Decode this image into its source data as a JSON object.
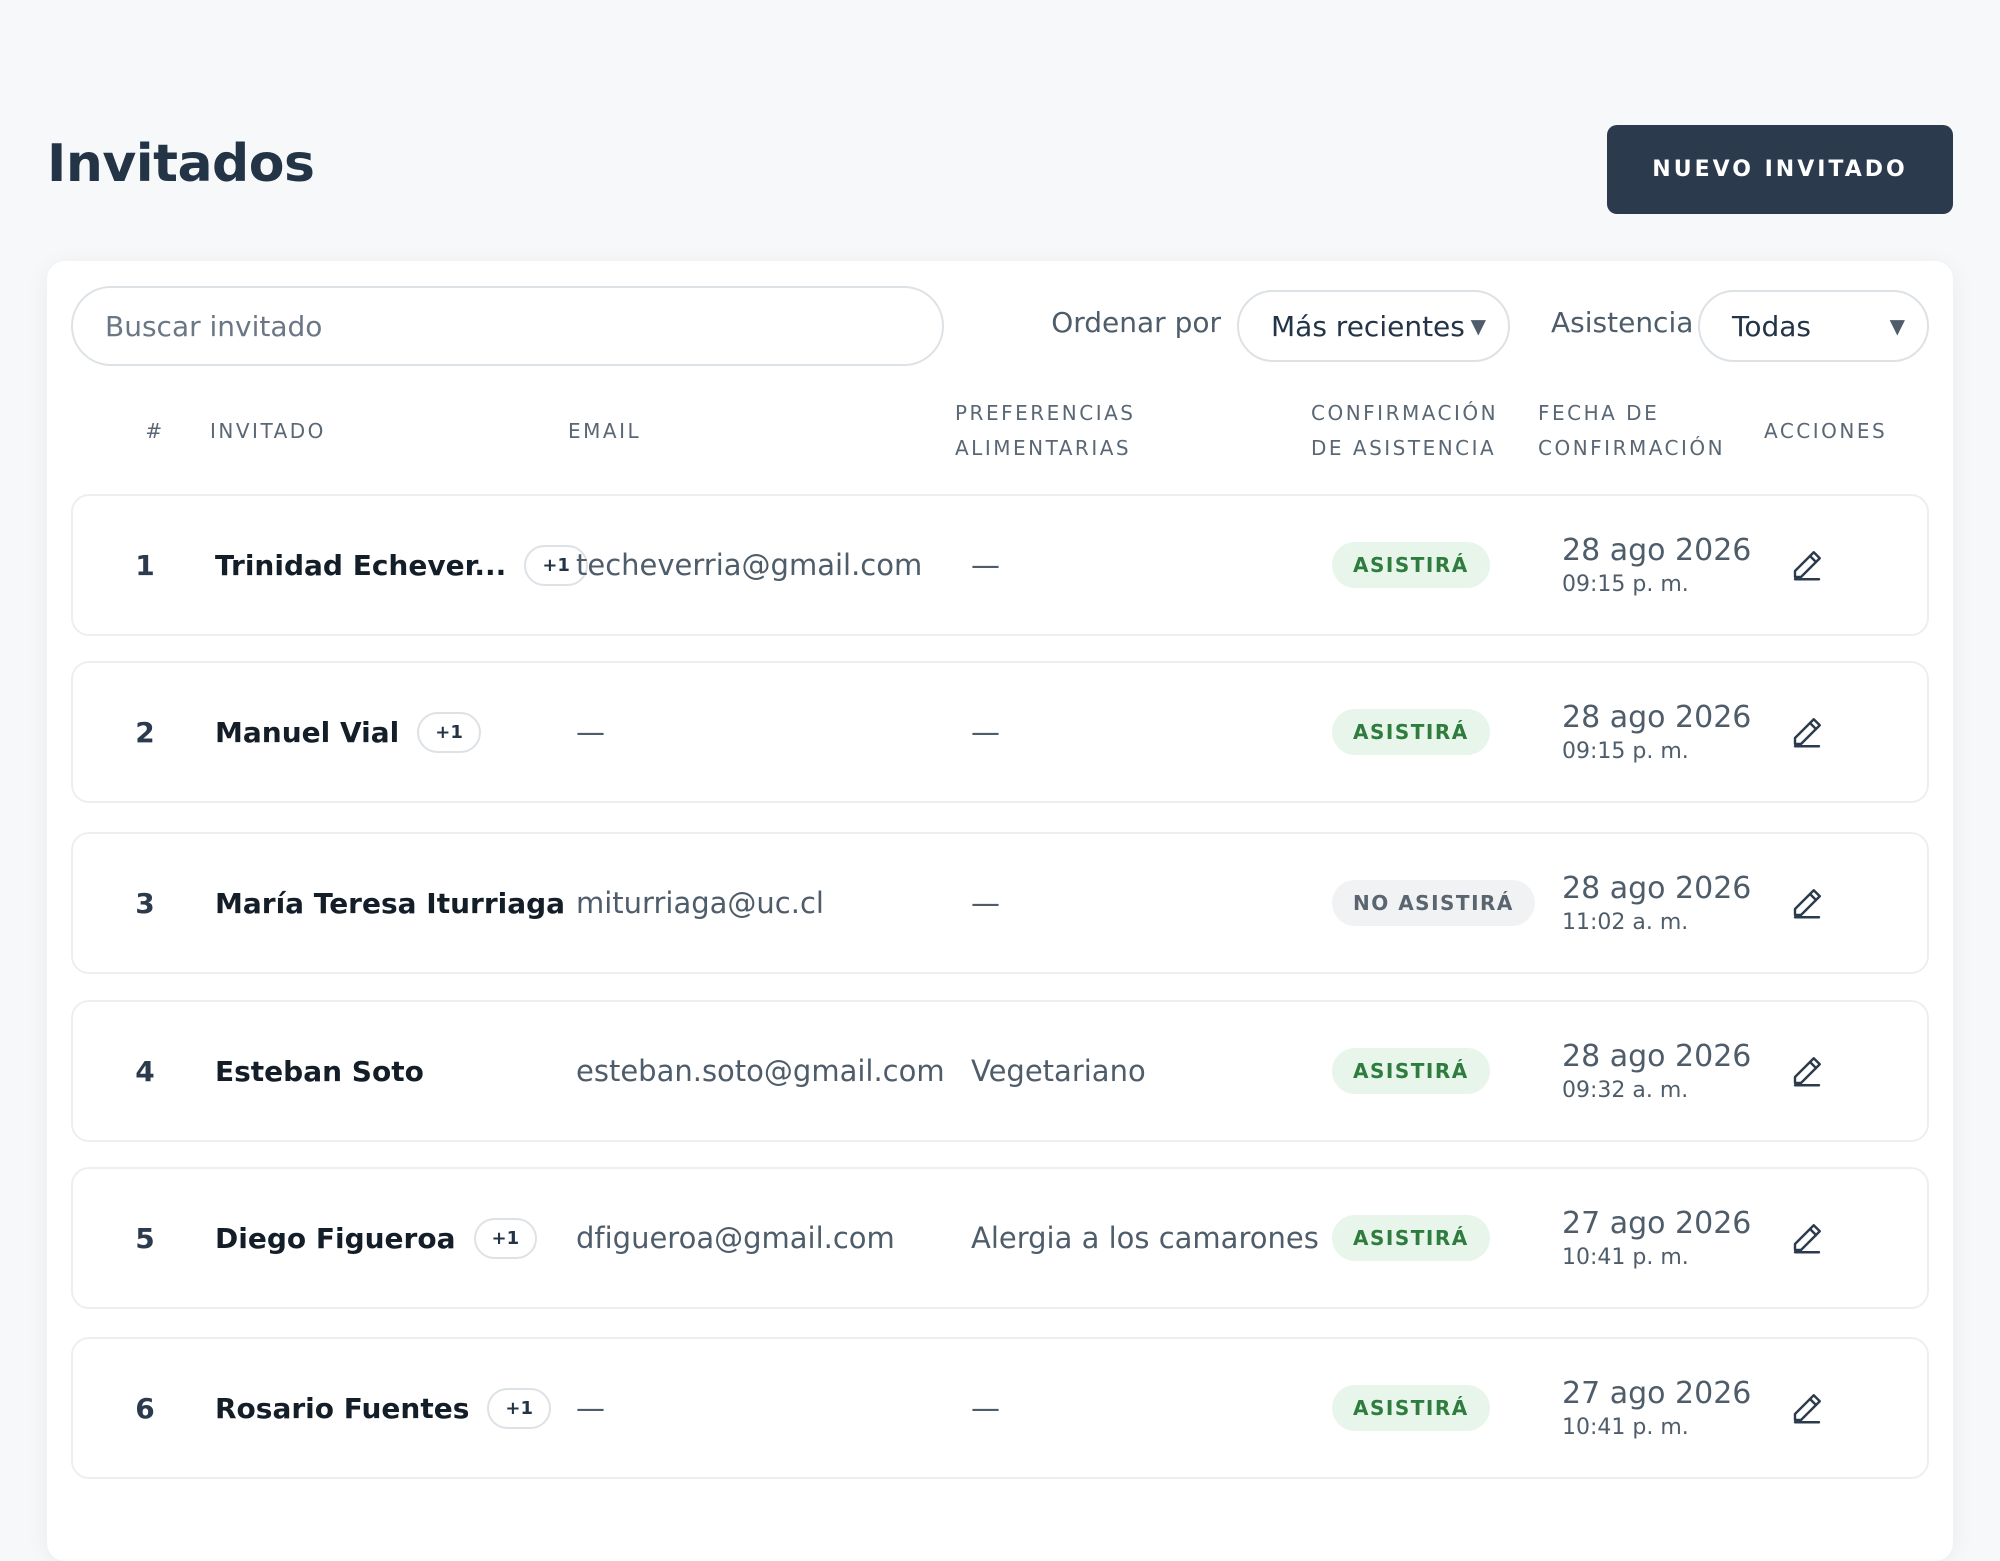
{
  "header": {
    "title": "Invitados",
    "button": "NUEVO INVITADO"
  },
  "toolbar": {
    "search_placeholder": "Buscar invitado",
    "sort_label": "Ordenar por",
    "sort_value": "Más recientes",
    "filter_label": "Asistencia",
    "filter_value": "Todas"
  },
  "table": {
    "columns": [
      "#",
      "INVITADO",
      "EMAIL",
      "PREFERENCIAS ALIMENTARIAS",
      "CONFIRMACIÓN DE ASISTENCIA",
      "FECHA DE CONFIRMACIÓN",
      "ACCIONES"
    ],
    "rows": [
      {
        "number": "1",
        "name": "Trinidad Echever...",
        "plus": "+1",
        "email": "techeverria@gmail.com",
        "preferences": "—",
        "status": "ASISTIRÁ",
        "status_color": "#2e7d3e",
        "status_background": "#e7f5eb",
        "date": "28 ago 2026",
        "time": "09:15 p. m."
      },
      {
        "number": "2",
        "name": "Manuel Vial",
        "plus": "+1",
        "email": "—",
        "preferences": "—",
        "status": "ASISTIRÁ",
        "status_color": "#2e7d3e",
        "status_background": "#e7f5eb",
        "date": "28 ago 2026",
        "time": "09:15 p. m."
      },
      {
        "number": "3",
        "name": "María Teresa Iturriaga",
        "email": "miturriaga@uc.cl",
        "preferences": "—",
        "status": "NO ASISTIRÁ",
        "status_color": "#5a6570",
        "status_background": "#f0f2f4",
        "date": "28 ago 2026",
        "time": "11:02 a. m."
      },
      {
        "number": "4",
        "name": "Esteban Soto",
        "email": "esteban.soto@gmail.com",
        "preferences": "Vegetariano",
        "status": "ASISTIRÁ",
        "status_color": "#2e7d3e",
        "status_background": "#e7f5eb",
        "date": "28 ago 2026",
        "time": "09:32 a. m."
      },
      {
        "number": "5",
        "name": "Diego Figueroa",
        "plus": "+1",
        "email": "dfigueroa@gmail.com",
        "preferences": "Alergia a los camarones",
        "status": "ASISTIRÁ",
        "status_color": "#2e7d3e",
        "status_background": "#e7f5eb",
        "date": "27 ago 2026",
        "time": "10:41 p. m."
      },
      {
        "number": "6",
        "name": "Rosario Fuentes",
        "plus": "+1",
        "email": "—",
        "preferences": "—",
        "status": "ASISTIRÁ",
        "status_color": "#2e7d3e",
        "status_background": "#e7f5eb",
        "date": "27 ago 2026",
        "time": "10:41 p. m."
      }
    ]
  }
}
